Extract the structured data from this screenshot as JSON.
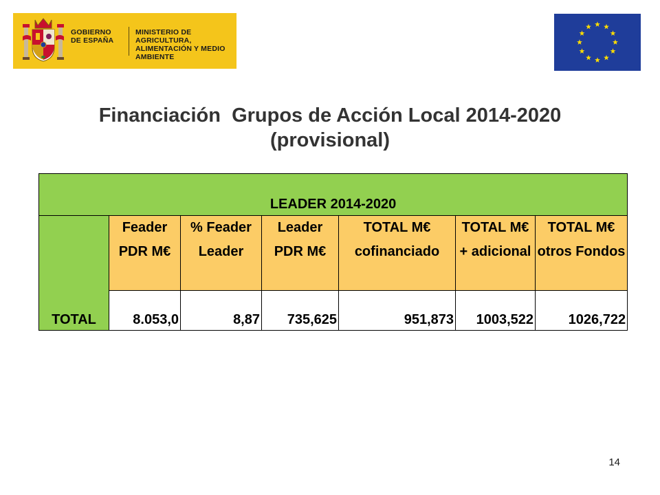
{
  "logo": {
    "line1": "GOBIERNO DE ESPAÑA",
    "line2": "MINISTERIO DE AGRICULTURA, ALIMENTACIÓN Y MEDIO AMBIENTE",
    "icon": "coat-of-arms-icon",
    "background_color": "#f4c51b"
  },
  "eu_flag": {
    "icon": "eu-flag-icon",
    "background_color": "#1f3d9a",
    "star_color": "#ffdd00"
  },
  "title": {
    "line1": "Financiación  Grupos de Acción Local 2014-2020",
    "line2": "(provisional)"
  },
  "table": {
    "banner": "LEADER 2014-2020",
    "row_label": "TOTAL",
    "columns": [
      {
        "header": "Feader PDR M€",
        "value": "8.053,0"
      },
      {
        "header": "% Feader Leader",
        "value": "8,87"
      },
      {
        "header": "Leader PDR M€",
        "value": "735,625"
      },
      {
        "header": "TOTAL M€ cofinanciado",
        "value": "951,873"
      },
      {
        "header": "TOTAL M€ + adicional",
        "value": "1003,522"
      },
      {
        "header": "TOTAL M€ otros Fondos",
        "value": "1026,722"
      }
    ],
    "colors": {
      "banner": "#92d050",
      "header": "#fccc66"
    }
  },
  "page_number": "14"
}
